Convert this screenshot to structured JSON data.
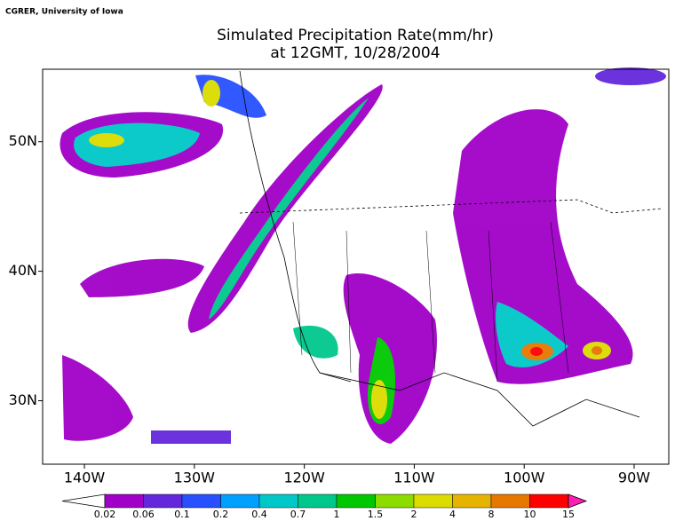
{
  "credit": "CGRER, University of Iowa",
  "title": [
    "Simulated Precipitation Rate(mm/hr)",
    "at 12GMT, 10/28/2004"
  ],
  "map": {
    "xlim": [
      -143.8,
      -86.85
    ],
    "ylim": [
      25.1,
      55.6
    ],
    "xticks": [
      {
        "value": -140,
        "label": "140W"
      },
      {
        "value": -130,
        "label": "130W"
      },
      {
        "value": -120,
        "label": "120W"
      },
      {
        "value": -110,
        "label": "110W"
      },
      {
        "value": -100,
        "label": "100W"
      },
      {
        "value": -90,
        "label": "90W"
      }
    ],
    "yticks": [
      {
        "value": 30,
        "label": "30N"
      },
      {
        "value": 40,
        "label": "40N"
      },
      {
        "value": 50,
        "label": "50N"
      }
    ]
  },
  "colorbar": {
    "levels": [
      0.02,
      0.06,
      0.1,
      0.2,
      0.4,
      0.7,
      1,
      1.5,
      2,
      4,
      8,
      10,
      15
    ],
    "colors": [
      "#ffffff",
      "#a000c8",
      "#6428dc",
      "#2850ff",
      "#00a0ff",
      "#00c8c8",
      "#00c88c",
      "#00c800",
      "#8cdc00",
      "#dcdc00",
      "#e6b400",
      "#e67800",
      "#ff0000",
      "#ff1eb4"
    ]
  }
}
